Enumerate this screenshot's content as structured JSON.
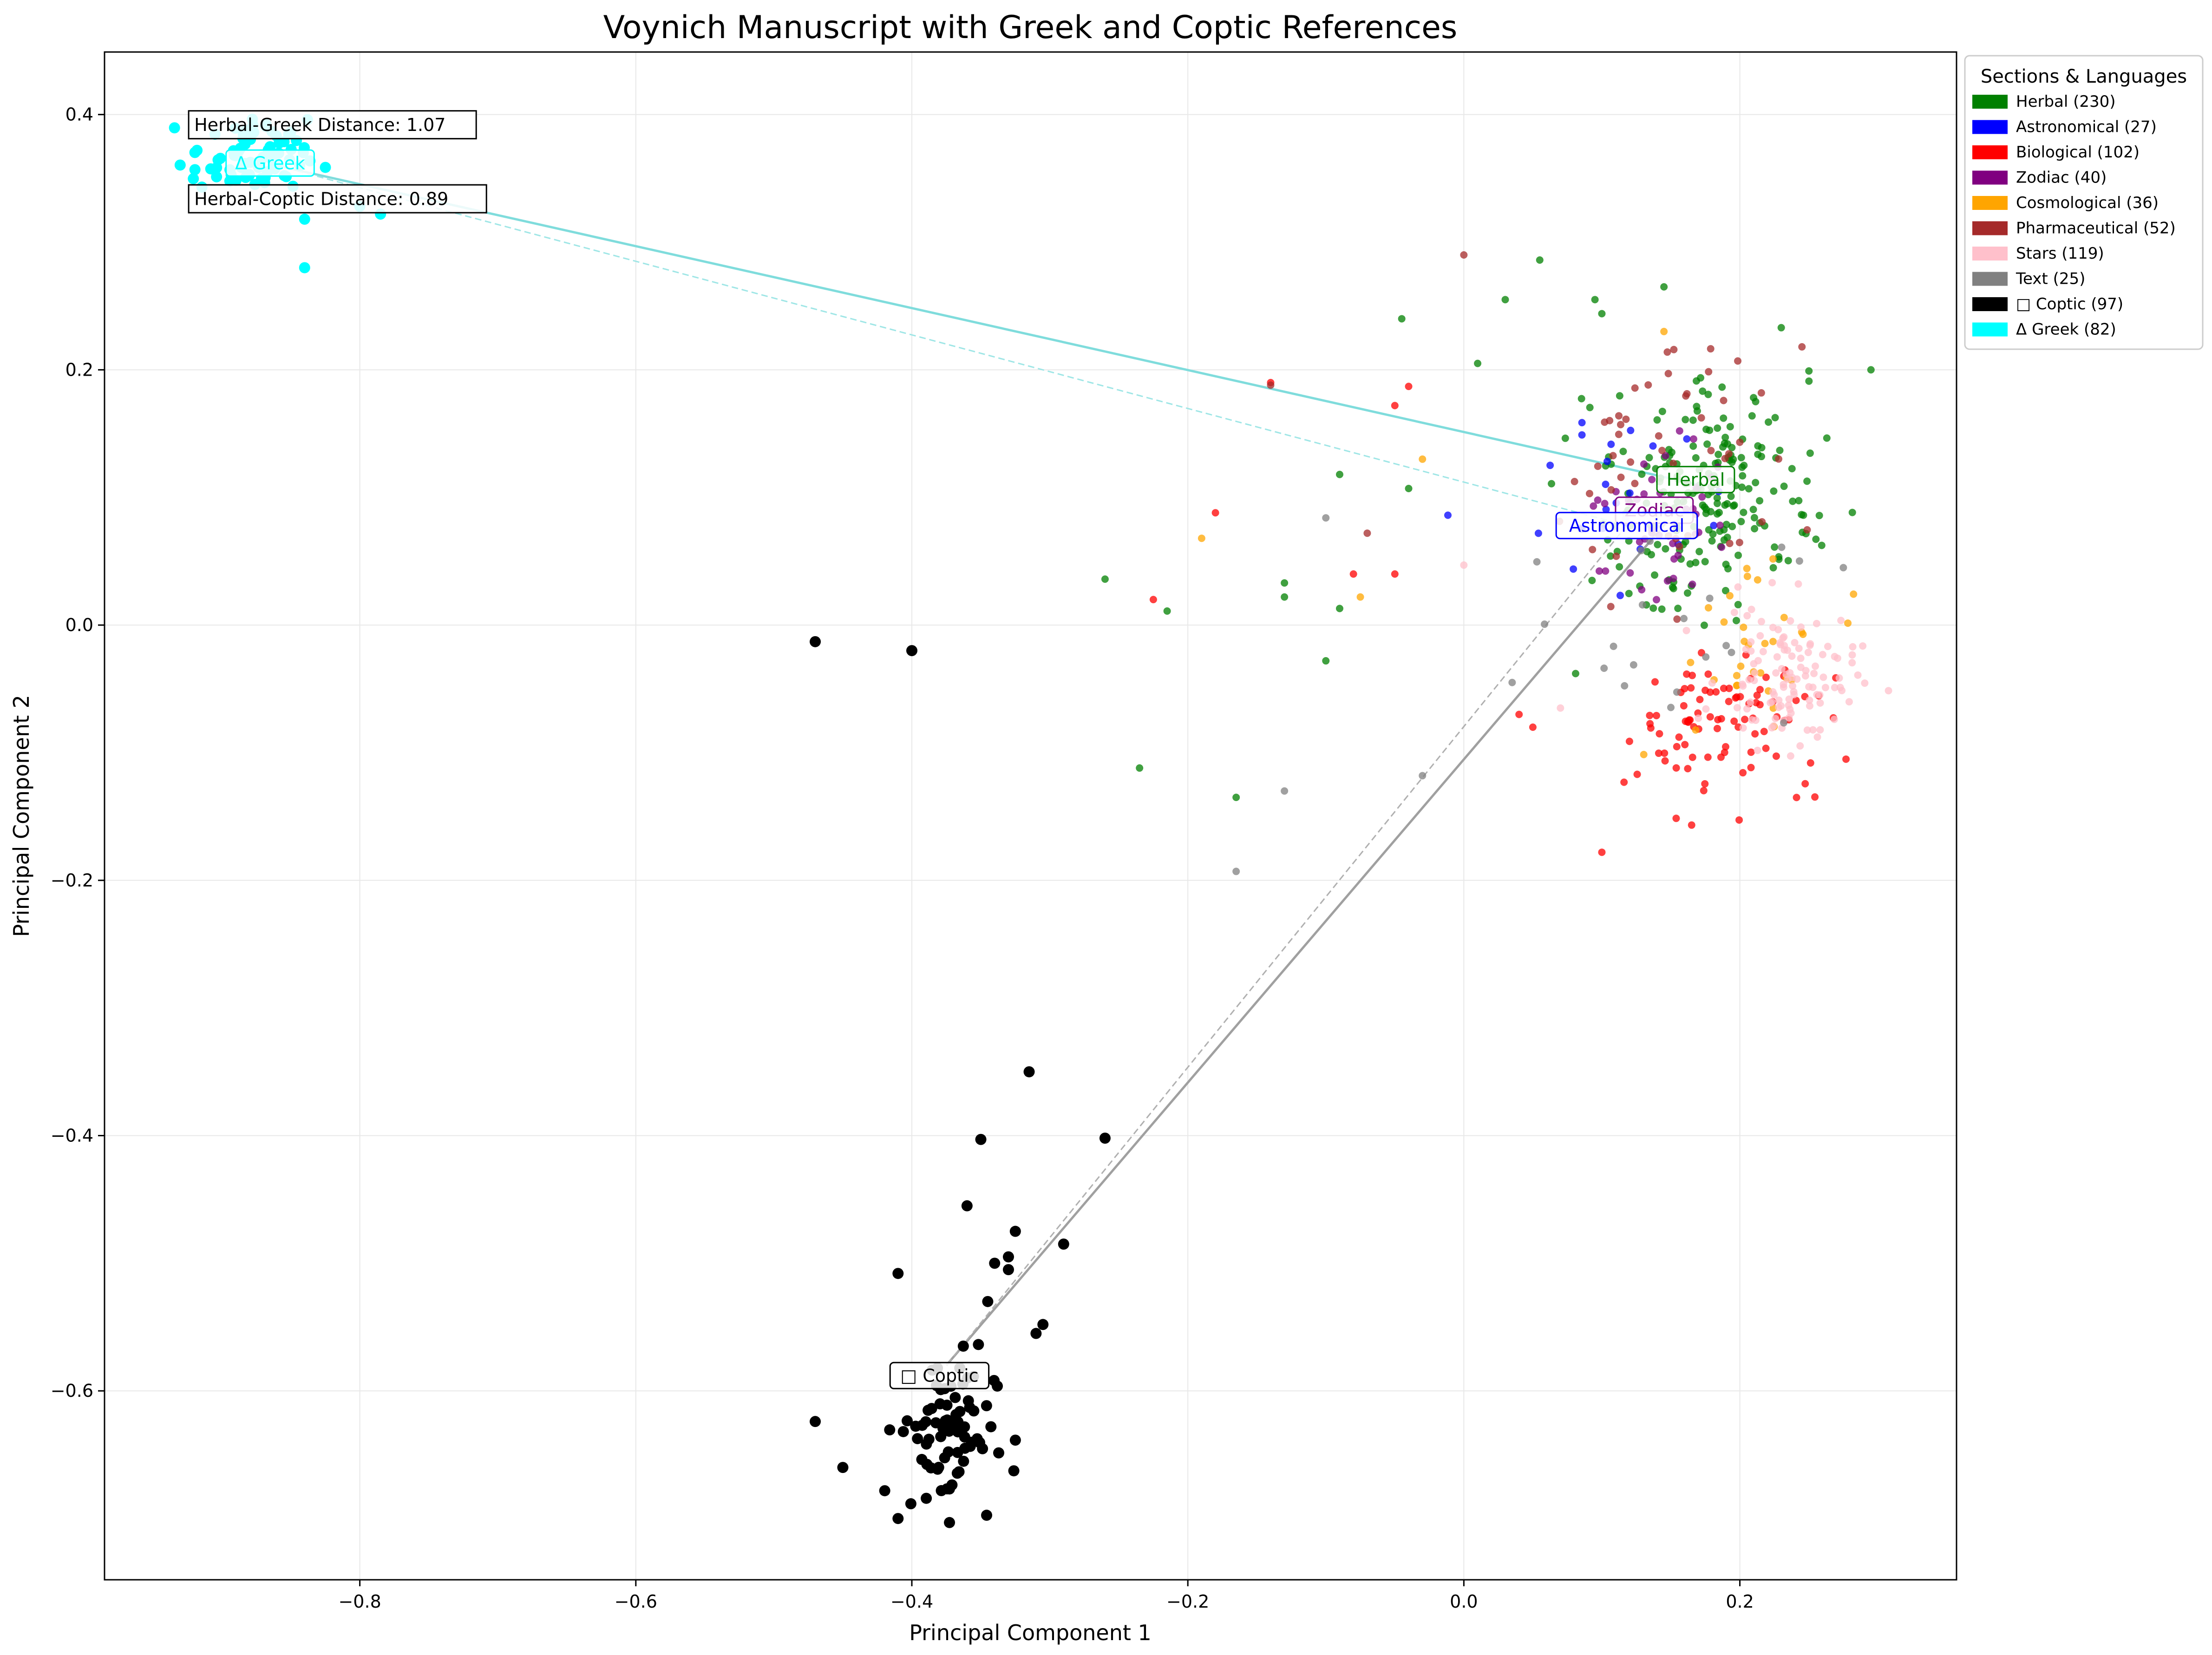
{
  "chart_data": {
    "type": "scatter",
    "title": "Voynich Manuscript with Greek and Coptic References",
    "xlabel": "Principal Component 1",
    "ylabel": "Principal Component 2",
    "xlim": [
      -0.985,
      0.357
    ],
    "ylim": [
      -0.748,
      0.449
    ],
    "x_ticks": [
      -0.8,
      -0.6,
      -0.4,
      -0.2,
      0.0,
      0.2
    ],
    "x_tick_labels": [
      "−0.8",
      "−0.6",
      "−0.4",
      "−0.2",
      "0.0",
      "0.2"
    ],
    "y_ticks": [
      -0.6,
      -0.4,
      -0.2,
      0.0,
      0.2,
      0.4
    ],
    "y_tick_labels": [
      "−0.6",
      "−0.4",
      "−0.2",
      "0.0",
      "0.2",
      "0.4"
    ],
    "grid": true,
    "legend": {
      "title": "Sections & Languages",
      "placement": "outside-right-top",
      "entries": [
        {
          "label": "Herbal (230)",
          "color": "#008000"
        },
        {
          "label": "Astronomical (27)",
          "color": "#0000ff"
        },
        {
          "label": "Biological (102)",
          "color": "#ff0000"
        },
        {
          "label": "Zodiac (40)",
          "color": "#800080"
        },
        {
          "label": "Cosmological (36)",
          "color": "#ffa500"
        },
        {
          "label": "Pharmaceutical (52)",
          "color": "#a52a2a"
        },
        {
          "label": "Stars (119)",
          "color": "#ffc0cb"
        },
        {
          "label": "Text (25)",
          "color": "#808080"
        },
        {
          "label": "□ Coptic (97)",
          "color": "#000000"
        },
        {
          "label": "Δ Greek (82)",
          "color": "#00ffff"
        }
      ]
    },
    "series": [
      {
        "key": "herbal",
        "color": "#008000",
        "count": 230,
        "centroid": [
          0.175,
          0.105
        ],
        "spread": [
          0.055,
          0.06
        ],
        "outliers": [
          [
            -0.26,
            0.036
          ],
          [
            -0.215,
            0.011
          ],
          [
            -0.235,
            -0.112
          ],
          [
            -0.165,
            -0.135
          ],
          [
            -0.13,
            0.033
          ],
          [
            -0.13,
            0.022
          ],
          [
            -0.09,
            0.013
          ],
          [
            -0.1,
            -0.028
          ],
          [
            -0.045,
            0.24
          ],
          [
            -0.04,
            0.107
          ],
          [
            0.03,
            0.255
          ],
          [
            0.055,
            0.286
          ],
          [
            0.1,
            0.244
          ],
          [
            0.095,
            0.255
          ],
          [
            0.145,
            0.265
          ],
          [
            0.295,
            0.2
          ],
          [
            0.23,
            0.233
          ],
          [
            0.01,
            0.205
          ],
          [
            -0.09,
            0.118
          ]
        ],
        "anchor": [
          0.17,
          0.11
        ]
      },
      {
        "key": "astronomical",
        "color": "#0000ff",
        "count": 27,
        "centroid": [
          0.12,
          0.1
        ],
        "spread": [
          0.055,
          0.055
        ],
        "anchor": [
          0.118,
          0.078
        ]
      },
      {
        "key": "biological",
        "color": "#ff0000",
        "count": 102,
        "centroid": [
          0.19,
          -0.08
        ],
        "spread": [
          0.055,
          0.04
        ],
        "outliers": [
          [
            -0.225,
            0.02
          ],
          [
            -0.18,
            0.088
          ],
          [
            -0.05,
            0.172
          ],
          [
            -0.04,
            0.187
          ],
          [
            -0.08,
            0.04
          ],
          [
            0.1,
            -0.178
          ],
          [
            0.05,
            -0.08
          ],
          [
            0.04,
            -0.07
          ],
          [
            -0.05,
            0.04
          ],
          [
            -0.14,
            0.19
          ]
        ],
        "anchor": [
          0.19,
          -0.08
        ]
      },
      {
        "key": "zodiac",
        "color": "#800080",
        "count": 40,
        "centroid": [
          0.14,
          0.08
        ],
        "spread": [
          0.05,
          0.045
        ],
        "anchor": [
          0.138,
          0.09
        ]
      },
      {
        "key": "cosmological",
        "color": "#ffa500",
        "count": 36,
        "centroid": [
          0.21,
          -0.01
        ],
        "spread": [
          0.05,
          0.06
        ],
        "outliers": [
          [
            -0.19,
            0.068
          ],
          [
            -0.075,
            0.022
          ],
          [
            -0.03,
            0.13
          ],
          [
            0.145,
            0.23
          ]
        ],
        "anchor": [
          0.21,
          -0.01
        ]
      },
      {
        "key": "pharmaceutical",
        "color": "#a52a2a",
        "count": 52,
        "centroid": [
          0.15,
          0.12
        ],
        "spread": [
          0.06,
          0.07
        ],
        "outliers": [
          [
            -0.14,
            0.188
          ],
          [
            -0.07,
            0.072
          ],
          [
            0.0,
            0.29
          ],
          [
            0.245,
            0.218
          ]
        ],
        "anchor": [
          0.15,
          0.12
        ]
      },
      {
        "key": "stars",
        "color": "#ffc0cb",
        "count": 119,
        "centroid": [
          0.235,
          -0.04
        ],
        "spread": [
          0.035,
          0.04
        ],
        "outliers": [
          [
            0.0,
            0.047
          ],
          [
            0.07,
            -0.065
          ]
        ],
        "anchor": [
          0.235,
          -0.04
        ]
      },
      {
        "key": "text",
        "color": "#808080",
        "count": 25,
        "centroid": [
          0.14,
          0.0
        ],
        "spread": [
          0.07,
          0.06
        ],
        "outliers": [
          [
            -0.1,
            0.084
          ],
          [
            -0.13,
            -0.13
          ],
          [
            -0.165,
            -0.193
          ],
          [
            -0.03,
            -0.118
          ],
          [
            0.035,
            -0.045
          ],
          [
            0.275,
            0.045
          ]
        ],
        "anchor": [
          0.14,
          0.0
        ]
      },
      {
        "key": "coptic",
        "color": "#000000",
        "count": 97,
        "centroid": [
          -0.375,
          -0.63
        ],
        "spread": [
          0.025,
          0.045
        ],
        "outliers": [
          [
            -0.47,
            -0.013
          ],
          [
            -0.4,
            -0.02
          ],
          [
            -0.315,
            -0.35
          ],
          [
            -0.26,
            -0.402
          ],
          [
            -0.35,
            -0.403
          ],
          [
            -0.36,
            -0.455
          ],
          [
            -0.325,
            -0.475
          ],
          [
            -0.29,
            -0.485
          ],
          [
            -0.33,
            -0.495
          ],
          [
            -0.34,
            -0.5
          ],
          [
            -0.33,
            -0.505
          ],
          [
            -0.41,
            -0.508
          ],
          [
            -0.345,
            -0.53
          ],
          [
            -0.305,
            -0.548
          ],
          [
            -0.31,
            -0.555
          ],
          [
            -0.47,
            -0.624
          ],
          [
            -0.45,
            -0.66
          ],
          [
            -0.41,
            -0.7
          ]
        ],
        "anchor": [
          -0.375,
          -0.58
        ]
      },
      {
        "key": "greek",
        "color": "#00ffff",
        "count": 82,
        "centroid": [
          -0.88,
          0.365
        ],
        "spread": [
          0.03,
          0.022
        ],
        "outliers": [
          [
            -0.84,
            0.28
          ],
          [
            -0.785,
            0.322
          ],
          [
            -0.8,
            0.328
          ],
          [
            -0.84,
            0.318
          ]
        ],
        "anchor": [
          -0.86,
          0.36
        ]
      }
    ],
    "links": [
      {
        "from": "herbal",
        "to": "greek",
        "style": "solid",
        "color": "#7fdcdc"
      },
      {
        "from": "astronomical",
        "to": "greek",
        "style": "dashed",
        "color": "#9fe6e6"
      },
      {
        "from": "herbal",
        "to": "coptic",
        "style": "solid",
        "color": "#a0a0a0"
      },
      {
        "from": "astronomical",
        "to": "coptic",
        "style": "dashed",
        "color": "#b0b0b0"
      }
    ],
    "annotations": [
      {
        "text": "Herbal-Greek Distance: 1.07",
        "at": [
          -0.92,
          0.392
        ]
      },
      {
        "text": "Herbal-Coptic Distance: 0.89",
        "at": [
          -0.92,
          0.334
        ]
      }
    ],
    "cluster_labels": [
      {
        "text": "Herbal",
        "at": [
          0.168,
          0.114
        ],
        "color": "#008000"
      },
      {
        "text": "Zodiac",
        "at": [
          0.138,
          0.09
        ],
        "color": "#800080"
      },
      {
        "text": "Astronomical",
        "at": [
          0.118,
          0.078
        ],
        "color": "#0000ff"
      },
      {
        "text": "Δ Greek",
        "at": [
          -0.865,
          0.362
        ],
        "color": "#00ffff"
      },
      {
        "text": "□ Coptic",
        "at": [
          -0.38,
          -0.588
        ],
        "color": "#000000"
      }
    ]
  }
}
